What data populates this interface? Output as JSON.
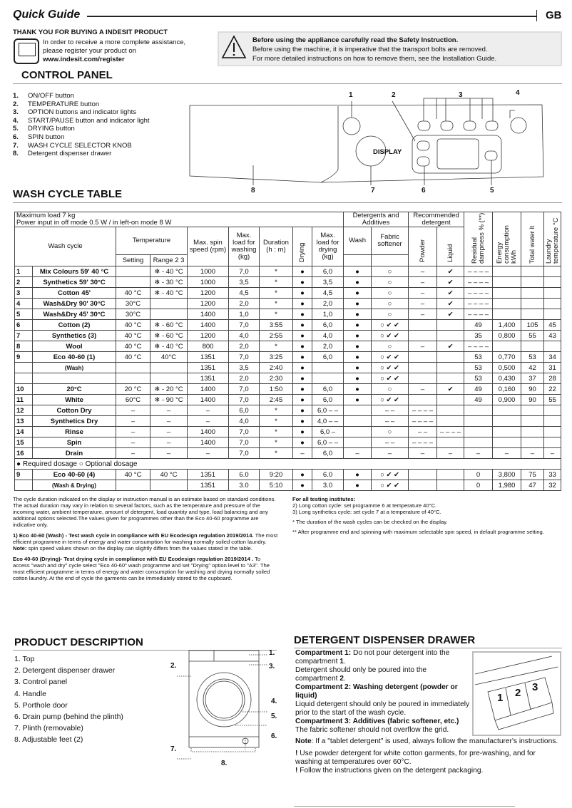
{
  "header": {
    "title": "Quick Guide",
    "lang": "GB"
  },
  "thanks": {
    "heading": "THANK YOU FOR BUYING A INDESIT PRODUCT",
    "line1": "In order to receive a more complete assistance,",
    "line2": "please register your product on",
    "url": "www.indesit.com/register"
  },
  "safety": {
    "heading": "Before using the appliance carefully read the Safety Instruction.",
    "line1": "Before using the machine, it is imperative that the transport bolts are removed.",
    "line2": "For more detailed instructions on how to remove them, see the Installation Guide."
  },
  "control_panel": {
    "title": "CONTROL PANEL",
    "display": "DISPLAY",
    "items": [
      {
        "n": "1.",
        "label": "ON/OFF button"
      },
      {
        "n": "2.",
        "label": "TEMPERATURE button"
      },
      {
        "n": "3.",
        "label": "OPTION buttons and indicator lights"
      },
      {
        "n": "4.",
        "label": "START/PAUSE button and indicator light"
      },
      {
        "n": "5.",
        "label": "DRYING button"
      },
      {
        "n": "6.",
        "label": "SPIN button"
      },
      {
        "n": "7.",
        "label": "WASH CYCLE SELECTOR KNOB"
      },
      {
        "n": "8.",
        "label": "Detergent dispenser drawer"
      }
    ],
    "callouts": [
      "1",
      "2",
      "3",
      "4",
      "5",
      "6",
      "7",
      "8"
    ]
  },
  "wash_table": {
    "title": "WASH CYCLE TABLE",
    "max_load": "Maximum load 7 kg",
    "power": "Power input in off  mode 0.5 W / in left-on mode 8 W",
    "h_wash_cycle": "Wash cycle",
    "h_temperature": "Temperature",
    "h_setting": "Setting",
    "h_range": "Range 2 3",
    "h_spin": "Max. spin speed (rpm)",
    "h_load": "Max. load for washing (kg)",
    "h_duration": "Duration (h : m)",
    "h_drying": "Drying",
    "h_dry_load": "Max. load for drying (kg)",
    "h_detergents": "Detergents and Additives",
    "h_wash": "Wash",
    "h_softener": "Fabric softener",
    "h_recommended": "Recommended detergent",
    "h_powder": "Powder",
    "h_liquid": "Liquid",
    "h_residual": "Residual dampness % (**)",
    "h_energy": "Energy consumption kWh",
    "h_water": "Total water lt",
    "h_ltemp": "Laundry temperature °C",
    "legend": "● Required dosage   ○ Optional dosage",
    "rows": [
      [
        "1",
        "Mix Colours 59' 40 °C",
        "",
        "❄ - 40 °C",
        "1000",
        "7,0",
        "*",
        "●",
        "6,0",
        "●",
        "○",
        "–",
        "✔",
        "– – – –",
        "",
        "",
        ""
      ],
      [
        "2",
        "Synthetics 59' 30°C",
        "",
        "❄ - 30 °C",
        "1000",
        "3,5",
        "*",
        "●",
        "3,5",
        "●",
        "○",
        "–",
        "✔",
        "– – – –",
        "",
        "",
        ""
      ],
      [
        "3",
        "Cotton 45'",
        "40 °C",
        "❄ - 40 °C",
        "1200",
        "4,5",
        "*",
        "●",
        "4,5",
        "●",
        "○",
        "–",
        "✔",
        "– – – –",
        "",
        "",
        ""
      ],
      [
        "4",
        "Wash&Dry 90' 30°C",
        "30°C",
        "",
        "1200",
        "2,0",
        "*",
        "●",
        "2,0",
        "●",
        "○",
        "–",
        "✔",
        "– – – –",
        "",
        "",
        ""
      ],
      [
        "5",
        "Wash&Dry 45' 30°C",
        "30°C",
        "",
        "1400",
        "1,0",
        "*",
        "●",
        "1,0",
        "●",
        "○",
        "–",
        "✔",
        "– – – –",
        "",
        "",
        ""
      ],
      [
        "6",
        "Cotton (2)",
        "40 °C",
        "❄ - 60 °C",
        "1400",
        "7,0",
        "3:55",
        "●",
        "6,0",
        "●",
        "○ ✔ ✔",
        "",
        "",
        "49",
        "1,400",
        "105",
        "45"
      ],
      [
        "7",
        "Synthetics (3)",
        "40 °C",
        "❄ - 60 °C",
        "1200",
        "4,0",
        "2:55",
        "●",
        "4,0",
        "●",
        "○ ✔ ✔",
        "",
        "",
        "35",
        "0,800",
        "55",
        "43"
      ],
      [
        "8",
        "Wool",
        "40 °C",
        "❄ - 40 °C",
        "800",
        "2,0",
        "*",
        "●",
        "2,0",
        "●",
        "○",
        "–",
        "✔",
        "– – – –",
        "",
        "",
        ""
      ],
      [
        "9",
        "Eco 40-60 (1)",
        "40 °C",
        "40°C",
        "1351",
        "7,0",
        "3:25",
        "●",
        "6,0",
        "●",
        "○ ✔ ✔",
        "",
        "",
        "53",
        "0,770",
        "53",
        "34"
      ],
      [
        "",
        "(Wash)",
        "",
        "",
        "1351",
        "3,5",
        "2:40",
        "●",
        "",
        "●",
        "○ ✔ ✔",
        "",
        "",
        "53",
        "0,500",
        "42",
        "31"
      ],
      [
        "",
        "",
        "",
        "",
        "1351",
        "2,0",
        "2:30",
        "●",
        "",
        "●",
        "○ ✔ ✔",
        "",
        "",
        "53",
        "0,430",
        "37",
        "28"
      ],
      [
        "10",
        "20°C",
        "20 °C",
        "❄ - 20 °C",
        "1400",
        "7,0",
        "1:50",
        "●",
        "6,0",
        "●",
        "○",
        "–",
        "✔",
        "49",
        "0,160",
        "90",
        "22"
      ],
      [
        "11",
        "White",
        "60°C",
        "❄ - 90 °C",
        "1400",
        "7,0",
        "2:45",
        "●",
        "6,0",
        "●",
        "○ ✔ ✔",
        "",
        "",
        "49",
        "0,900",
        "90",
        "55"
      ],
      [
        "12",
        "Cotton Dry",
        "–",
        "–",
        "–",
        "6,0",
        "*",
        "●",
        "6,0 – –",
        "",
        "– –",
        "– – – –",
        "",
        "",
        "",
        "",
        ""
      ],
      [
        "13",
        "Synthetics Dry",
        "–",
        "–",
        "–",
        "4,0",
        "*",
        "●",
        "4,0 – –",
        "",
        "– –",
        "– – – –",
        "",
        "",
        "",
        "",
        ""
      ],
      [
        "14",
        "Rinse",
        "–",
        "–",
        "1400",
        "7,0",
        "*",
        "●",
        "6,0 –",
        "",
        "○",
        "– –",
        "– – – –",
        "",
        "",
        "",
        ""
      ],
      [
        "15",
        "Spin",
        "–",
        "–",
        "1400",
        "7,0",
        "*",
        "●",
        "6,0 – –",
        "",
        "– –",
        "– – – –",
        "",
        "",
        "",
        "",
        ""
      ],
      [
        "16",
        "Drain",
        "–",
        "–",
        "–",
        "7,0",
        "*",
        "–",
        "6,0",
        "–",
        "–",
        "–",
        "–",
        "–",
        "–",
        "–",
        "–"
      ]
    ],
    "rows2": [
      [
        "9",
        "Eco 40-60 (4)",
        "40 °C",
        "40 °C",
        "1351",
        "6.0",
        "9:20",
        "●",
        "6.0",
        "●",
        "○ ✔ ✔",
        "",
        "",
        "0",
        "3,800",
        "75",
        "33"
      ],
      [
        "",
        "(Wash & Drying)",
        "",
        "",
        "1351",
        "3.0",
        "5:10",
        "●",
        "3.0",
        "●",
        "○ ✔ ✔",
        "",
        "",
        "0",
        "1,980",
        "47",
        "32"
      ]
    ]
  },
  "notes": {
    "p1": "The cycle duration indicated on the display or instruction manual is an estimate based on standard conditions. The actual duration may vary in relation to several factors, such as the temperature and pressure of the incoming water, ambient temperature, amount of detergent, load quantity and type, load balancing and any additional options selected.The values given for programmes other than the Eco 40-60 programme are indicative only.",
    "p2_bold": "1) Eco 40-60 (Wash) - Test wash cycle in compliance with EU Ecodesign regulation 2019/2014.",
    "p2": " The most efficient programme in terms of energy and water consumption for washing normally soiled cotton laundry.",
    "p2_note_bold": "Note:",
    "p2_note": " spin speed values shown on the display can slightly differs from the values stated in the table.",
    "p3_bold": "Eco 40-60 (Drying)-  Test drying cycle in compliance with EU Ecodesign regulation 2019/2014 .",
    "p3": " To access \"wash and dry\" cycle select  \"Eco 40-60\" wash programme and set \"Drying\" option level to \"A3\".  The most efficient programme in terms of energy and water consumption for washing and drying normally soiled cotton laundry. At the end of cycle the garments can be immediately stored to the cupboard.",
    "testing_heading": "For all testing institutes:",
    "t2": "2)  Long cotton cycle: set programme 6 at temperature 40°C.",
    "t3": "3)  Long synthetics cycle: set cycle 7 at a temperature of 40°C.",
    "star": "The duration of the wash cycles can be checked on the display.",
    "dstar": "After programme end and spinning with maximum selectable spin speed, in default programme setting."
  },
  "product": {
    "title": "PRODUCT DESCRIPTION",
    "items": [
      "1. Top",
      "2. Detergent dispenser drawer",
      "3. Control panel",
      "4. Handle",
      "5. Porthole door",
      "6. Drain pump (behind the plinth)",
      "7. Plinth (removable)",
      "8. Adjustable feet (2)"
    ],
    "callouts": [
      "1.",
      "2.",
      "3.",
      "4.",
      "5.",
      "6.",
      "7.",
      "8."
    ]
  },
  "drawer": {
    "title": "DETERGENT DISPENSER DRAWER",
    "c1_bold": "Compartment 1:",
    "c1": " Do not pour detergent into the compartment ",
    "c1_n": "1",
    "c1b": "Detergent should only be poured into the compartment ",
    "c1b_n": "2",
    "c2_bold": "Compartment 2: Washing detergent (powder or liquid)",
    "c2": "Liquid detergent should only be poured in immediately prior to the start of the wash cycle.",
    "c3_bold": "Compartment 3: Additives (fabric softener, etc.)",
    "c3": "The fabric softener should not overflow the grid.",
    "note_bold": "Note",
    "note": ": If a \"tablet detergent\" is used, always follow the manufacturer's instructions.",
    "w1": "Use powder detergent for white cotton garments, for pre-washing, and for washing at temperatures over 60°C.",
    "w2": "Follow the instructions given on the detergent packaging.",
    "img_labels": [
      "1",
      "2",
      "3"
    ]
  }
}
